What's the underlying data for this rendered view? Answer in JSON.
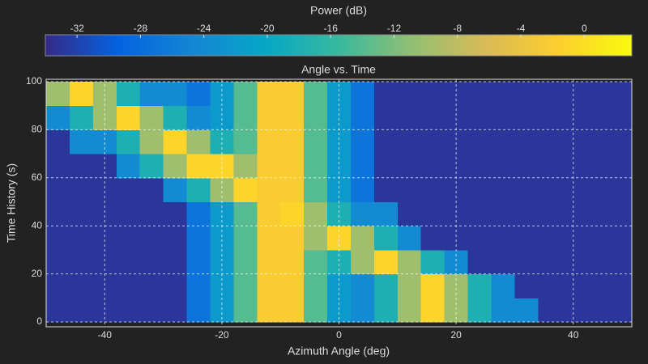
{
  "chart_data": {
    "type": "heatmap",
    "title": "Angle vs. Time",
    "x_label": "Azimuth Angle (deg)",
    "y_label": "Time History (s)",
    "colorbar_label": "Power (dB)",
    "x_edges": [
      -50,
      -46,
      -42,
      -38,
      -34,
      -30,
      -26,
      -22,
      -18,
      -14,
      -10,
      -6,
      -2,
      2,
      6,
      10,
      14,
      18,
      22,
      26,
      30,
      34,
      38,
      42,
      46,
      50
    ],
    "y_edges": [
      0,
      10,
      20,
      30,
      40,
      50,
      60,
      70,
      80,
      90,
      100
    ],
    "z": [
      [
        -33,
        -33,
        -33,
        -33,
        -33,
        -33,
        -27,
        -22,
        -14,
        -2,
        -2,
        -14,
        -22,
        -24,
        -18,
        -10,
        -1,
        -10,
        -18,
        -24,
        -24,
        -33,
        -33,
        -33,
        -33
      ],
      [
        -33,
        -33,
        -33,
        -33,
        -33,
        -33,
        -27,
        -22,
        -14,
        -2,
        -2,
        -14,
        -22,
        -24,
        -18,
        -10,
        -1,
        -10,
        -18,
        -24,
        -33,
        -33,
        -33,
        -33,
        -33
      ],
      [
        -33,
        -33,
        -33,
        -33,
        -33,
        -33,
        -27,
        -22,
        -14,
        -2,
        -2,
        -14,
        -18,
        -10,
        -1,
        -10,
        -18,
        -24,
        -33,
        -33,
        -33,
        -33,
        -33,
        -33,
        -33
      ],
      [
        -33,
        -33,
        -33,
        -33,
        -33,
        -33,
        -27,
        -22,
        -14,
        -2,
        -2,
        -10,
        -1,
        -10,
        -18,
        -24,
        -33,
        -33,
        -33,
        -33,
        -33,
        -33,
        -33,
        -33,
        -33
      ],
      [
        -33,
        -33,
        -33,
        -33,
        -33,
        -33,
        -27,
        -22,
        -14,
        -2,
        -1,
        -10,
        -18,
        -24,
        -24,
        -33,
        -33,
        -33,
        -33,
        -33,
        -33,
        -33,
        -33,
        -33,
        -33
      ],
      [
        -33,
        -33,
        -33,
        -33,
        -33,
        -24,
        -18,
        -10,
        -1,
        -2,
        -2,
        -14,
        -22,
        -27,
        -33,
        -33,
        -33,
        -33,
        -33,
        -33,
        -33,
        -33,
        -33,
        -33,
        -33
      ],
      [
        -33,
        -33,
        -33,
        -24,
        -18,
        -10,
        -1,
        -1,
        -10,
        -2,
        -2,
        -14,
        -22,
        -27,
        -33,
        -33,
        -33,
        -33,
        -33,
        -33,
        -33,
        -33,
        -33,
        -33,
        -33
      ],
      [
        -33,
        -24,
        -24,
        -18,
        -10,
        -1,
        -10,
        -18,
        -14,
        -2,
        -2,
        -14,
        -22,
        -27,
        -33,
        -33,
        -33,
        -33,
        -33,
        -33,
        -33,
        -33,
        -33,
        -33,
        -33
      ],
      [
        -24,
        -18,
        -10,
        -1,
        -10,
        -18,
        -24,
        -22,
        -14,
        -2,
        -2,
        -14,
        -22,
        -27,
        -33,
        -33,
        -33,
        -33,
        -33,
        -33,
        -33,
        -33,
        -33,
        -33,
        -33
      ],
      [
        -10,
        -1,
        -10,
        -18,
        -24,
        -24,
        -27,
        -22,
        -14,
        -2,
        -2,
        -14,
        -22,
        -27,
        -33,
        -33,
        -33,
        -33,
        -33,
        -33,
        -33,
        -33,
        -33,
        -33,
        -33
      ]
    ],
    "xlim": [
      -50,
      50
    ],
    "ylim": [
      -2,
      101
    ],
    "clim": [
      -34,
      3
    ],
    "xticks": [
      -40,
      -20,
      0,
      20,
      40
    ],
    "yticks": [
      0,
      20,
      40,
      60,
      80,
      100
    ],
    "cticks": [
      -32,
      -28,
      -24,
      -20,
      -16,
      -12,
      -8,
      -4,
      0
    ],
    "colormap": "parula",
    "grid": true
  }
}
